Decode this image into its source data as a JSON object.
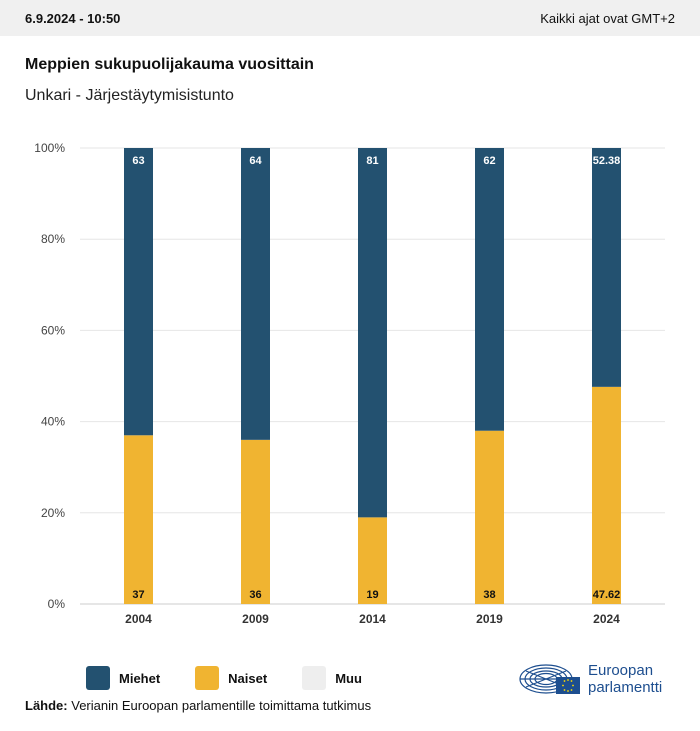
{
  "header": {
    "datetime": "6.9.2024 - 10:50",
    "timezone_note": "Kaikki ajat ovat GMT+2"
  },
  "title": "Meppien sukupuolijakauma vuosittain",
  "subtitle": "Unkari - Järjestäytymisistunto",
  "chart_data": {
    "type": "bar",
    "stacked": true,
    "categories": [
      "2004",
      "2009",
      "2014",
      "2019",
      "2024"
    ],
    "series": [
      {
        "name": "Naiset",
        "values": [
          37,
          36,
          19,
          38,
          47.62
        ],
        "color": "#f0b431"
      },
      {
        "name": "Miehet",
        "values": [
          63,
          64,
          81,
          62,
          52.38
        ],
        "color": "#235170"
      }
    ],
    "ylim": [
      0,
      100
    ],
    "yticks": [
      0,
      20,
      40,
      60,
      80,
      100
    ],
    "ytick_labels": [
      "0%",
      "20%",
      "40%",
      "60%",
      "80%",
      "100%"
    ],
    "grid": true,
    "legend": {
      "position": "bottom-left",
      "entries": [
        {
          "label": "Miehet",
          "color": "#235170"
        },
        {
          "label": "Naiset",
          "color": "#f0b431"
        },
        {
          "label": "Muu",
          "color": "#eeeeee"
        }
      ]
    }
  },
  "source": {
    "label": "Lähde:",
    "text": "Verianin Euroopan parlamentille toimittama tutkimus"
  },
  "logo": {
    "line1": "Euroopan",
    "line2": "parlamentti"
  }
}
